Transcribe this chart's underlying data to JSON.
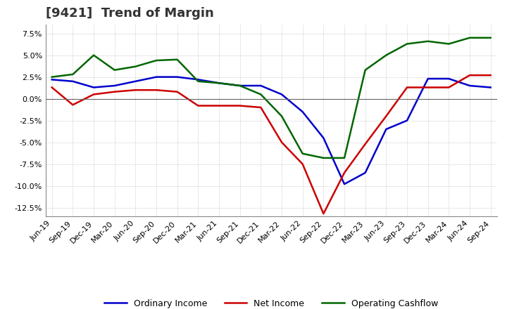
{
  "title": "[9421]  Trend of Margin",
  "x_labels": [
    "Jun-19",
    "Sep-19",
    "Dec-19",
    "Mar-20",
    "Jun-20",
    "Sep-20",
    "Dec-20",
    "Mar-21",
    "Jun-21",
    "Sep-21",
    "Dec-21",
    "Mar-22",
    "Jun-22",
    "Sep-22",
    "Dec-22",
    "Mar-23",
    "Jun-23",
    "Sep-23",
    "Dec-23",
    "Mar-24",
    "Jun-24",
    "Sep-24"
  ],
  "ordinary_income": [
    2.2,
    2.0,
    1.3,
    1.5,
    2.0,
    2.5,
    2.5,
    2.2,
    1.8,
    1.5,
    1.5,
    0.5,
    -1.5,
    -4.5,
    -9.8,
    -8.5,
    -3.5,
    -2.5,
    2.3,
    2.3,
    1.5,
    1.3
  ],
  "net_income": [
    1.3,
    -0.7,
    0.5,
    0.8,
    1.0,
    1.0,
    0.8,
    -0.8,
    -0.8,
    -0.8,
    -1.0,
    -5.0,
    -7.5,
    -13.2,
    -8.5,
    -5.2,
    -2.0,
    1.3,
    1.3,
    1.3,
    2.7,
    2.7
  ],
  "operating_cashflow": [
    2.5,
    2.8,
    5.0,
    3.3,
    3.7,
    4.4,
    4.5,
    2.0,
    1.8,
    1.5,
    0.5,
    -2.0,
    -6.3,
    -6.8,
    -6.8,
    3.3,
    5.0,
    6.3,
    6.6,
    6.3,
    7.0,
    7.0
  ],
  "ylim": [
    -13.5,
    8.5
  ],
  "yticks": [
    -12.5,
    -10.0,
    -7.5,
    -5.0,
    -2.5,
    0.0,
    2.5,
    5.0,
    7.5
  ],
  "line_colors": {
    "ordinary_income": "#0000CC",
    "net_income": "#CC0000",
    "operating_cashflow": "#006600"
  },
  "legend_labels": [
    "Ordinary Income",
    "Net Income",
    "Operating Cashflow"
  ],
  "background_color": "#FFFFFF",
  "plot_bg_color": "#FFFFFF",
  "grid_color": "#BBBBBB",
  "title_color": "#333333",
  "title_fontsize": 13,
  "axis_fontsize": 8,
  "legend_fontsize": 9
}
